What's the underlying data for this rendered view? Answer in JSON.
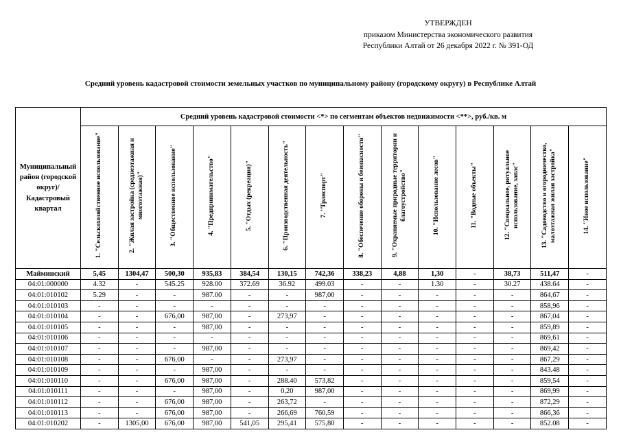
{
  "header": {
    "approved": "УТВЕРЖДЕН",
    "order_line1": "приказом Министерства экономического развития",
    "order_line2": "Республики Алтай от 26 декабря 2022 г. №  391-ОД"
  },
  "title": "Средний уровень кадастровой стоимости земельных участков по муниципальному району (городскому округу) в Республике Алтай",
  "table": {
    "corner_header": "Муниципальный район (городской округ)/ Кадастровый квартал",
    "span_header": "Средний уровень кадастровой стоимости <*> по сегментам объектов недвижимости <**>, руб./кв. м",
    "columns": [
      "1. \"Сельскохозяйственное использование\"",
      "2. \"Жилая застройка (среднеэтажная и многоэтажная)\"",
      "3. \"Общественное использование\"",
      "4. \"Предпринимательство\"",
      "5. \"Отдых (рекреация)\"",
      "6. \"Производственная деятельность\"",
      "7. \"Транспорт\"",
      "8. \"Обеспечение обороны и безопасности\"",
      "9. \"Охраняемые природные территории и благоустройство\"",
      "10. \"Использование лесов\"",
      "11. \"Водные объекты\"",
      "12. \"Специальное, ритуальное использование, запас\"",
      "13. \"Садоводство и огородничество, малоэтажная жилая застройка\"",
      "14. \"Иное использование\""
    ],
    "rows": [
      {
        "label": "Майминский",
        "bold": true,
        "values": [
          "5,45",
          "1304,47",
          "500,30",
          "935,83",
          "384,54",
          "130,15",
          "742,36",
          "338,23",
          "4,88",
          "1,30",
          "-",
          "38,73",
          "511,47",
          "-"
        ]
      },
      {
        "label": "04:01:000000",
        "bold": false,
        "values": [
          "4.32",
          "-",
          "545.25",
          "928.00",
          "372.69",
          "36.92",
          "499.03",
          "-",
          "-",
          "1.30",
          "-",
          "30.27",
          "438.64",
          "-"
        ]
      },
      {
        "label": "04:01:010102",
        "bold": false,
        "values": [
          "5.29",
          "-",
          "-",
          "987.00",
          "-",
          "-",
          "987,00",
          "-",
          "-",
          "-",
          "-",
          "-",
          "864,67",
          "-"
        ]
      },
      {
        "label": "04:01:010103",
        "bold": false,
        "values": [
          "-",
          "-",
          "-",
          "-",
          "-",
          "-",
          "-",
          "-",
          "-",
          "-",
          "-",
          "-",
          "858,96",
          "-"
        ]
      },
      {
        "label": "04:01:010104",
        "bold": false,
        "values": [
          "-",
          "-",
          "676,00",
          "987,00",
          "-",
          "273,97",
          "-",
          "-",
          "-",
          "-",
          "-",
          "-",
          "867,04",
          "-"
        ]
      },
      {
        "label": "04:01:010105",
        "bold": false,
        "values": [
          "-",
          "-",
          "-",
          "987,00",
          "-",
          "-",
          "-",
          "-",
          "-",
          "-",
          "-",
          "-",
          "859,89",
          "-"
        ]
      },
      {
        "label": "04:01:010106",
        "bold": false,
        "values": [
          "-",
          "-",
          "-",
          "-",
          "-",
          "-",
          "-",
          "-",
          "-",
          "-",
          "-",
          "-",
          "869,61",
          "-"
        ]
      },
      {
        "label": "04:01:010107",
        "bold": false,
        "values": [
          "-",
          "-",
          "-",
          "987,00",
          "-",
          "-",
          "-",
          "-",
          "-",
          "-",
          "-",
          "-",
          "869,42",
          "-"
        ]
      },
      {
        "label": "04:01:010108",
        "bold": false,
        "values": [
          "-",
          "-",
          "676,00",
          "-",
          "-",
          "273,97",
          "-",
          "-",
          "-",
          "-",
          "-",
          "-",
          "867,29",
          "-"
        ]
      },
      {
        "label": "04:01:010109",
        "bold": false,
        "values": [
          "-",
          "-",
          "-",
          "987,00",
          "-",
          "-",
          "-",
          "-",
          "-",
          "-",
          "-",
          "-",
          "843.48",
          "-"
        ]
      },
      {
        "label": "04:01:010110",
        "bold": false,
        "values": [
          "-",
          "-",
          "676,00",
          "987,00",
          "-",
          "288.40",
          "573,82",
          "-",
          "-",
          "-",
          "-",
          "-",
          "859,54",
          "-"
        ]
      },
      {
        "label": "04:01:010111",
        "bold": false,
        "values": [
          "-",
          "-",
          "-",
          "987,00",
          "-",
          "0,20",
          "987,00",
          "-",
          "-",
          "-",
          "-",
          "-",
          "869,99",
          "-"
        ]
      },
      {
        "label": "04:01:010112",
        "bold": false,
        "values": [
          "-",
          "-",
          "676,00",
          "987,00",
          "-",
          "263,72",
          "-",
          "-",
          "-",
          "-",
          "-",
          "-",
          "872,29",
          "-"
        ]
      },
      {
        "label": "04:01:010113",
        "bold": false,
        "values": [
          "-",
          "-",
          "676,00",
          "987,00",
          "-",
          "266,69",
          "760,59",
          "-",
          "-",
          "-",
          "-",
          "-",
          "866,36",
          "-"
        ]
      },
      {
        "label": "04:01:010202",
        "bold": false,
        "values": [
          "-",
          "1305,00",
          "676,00",
          "987,00",
          "541,05",
          "295,41",
          "575,80",
          "-",
          "-",
          "-",
          "-",
          "-",
          "852.08",
          "-"
        ]
      }
    ]
  }
}
